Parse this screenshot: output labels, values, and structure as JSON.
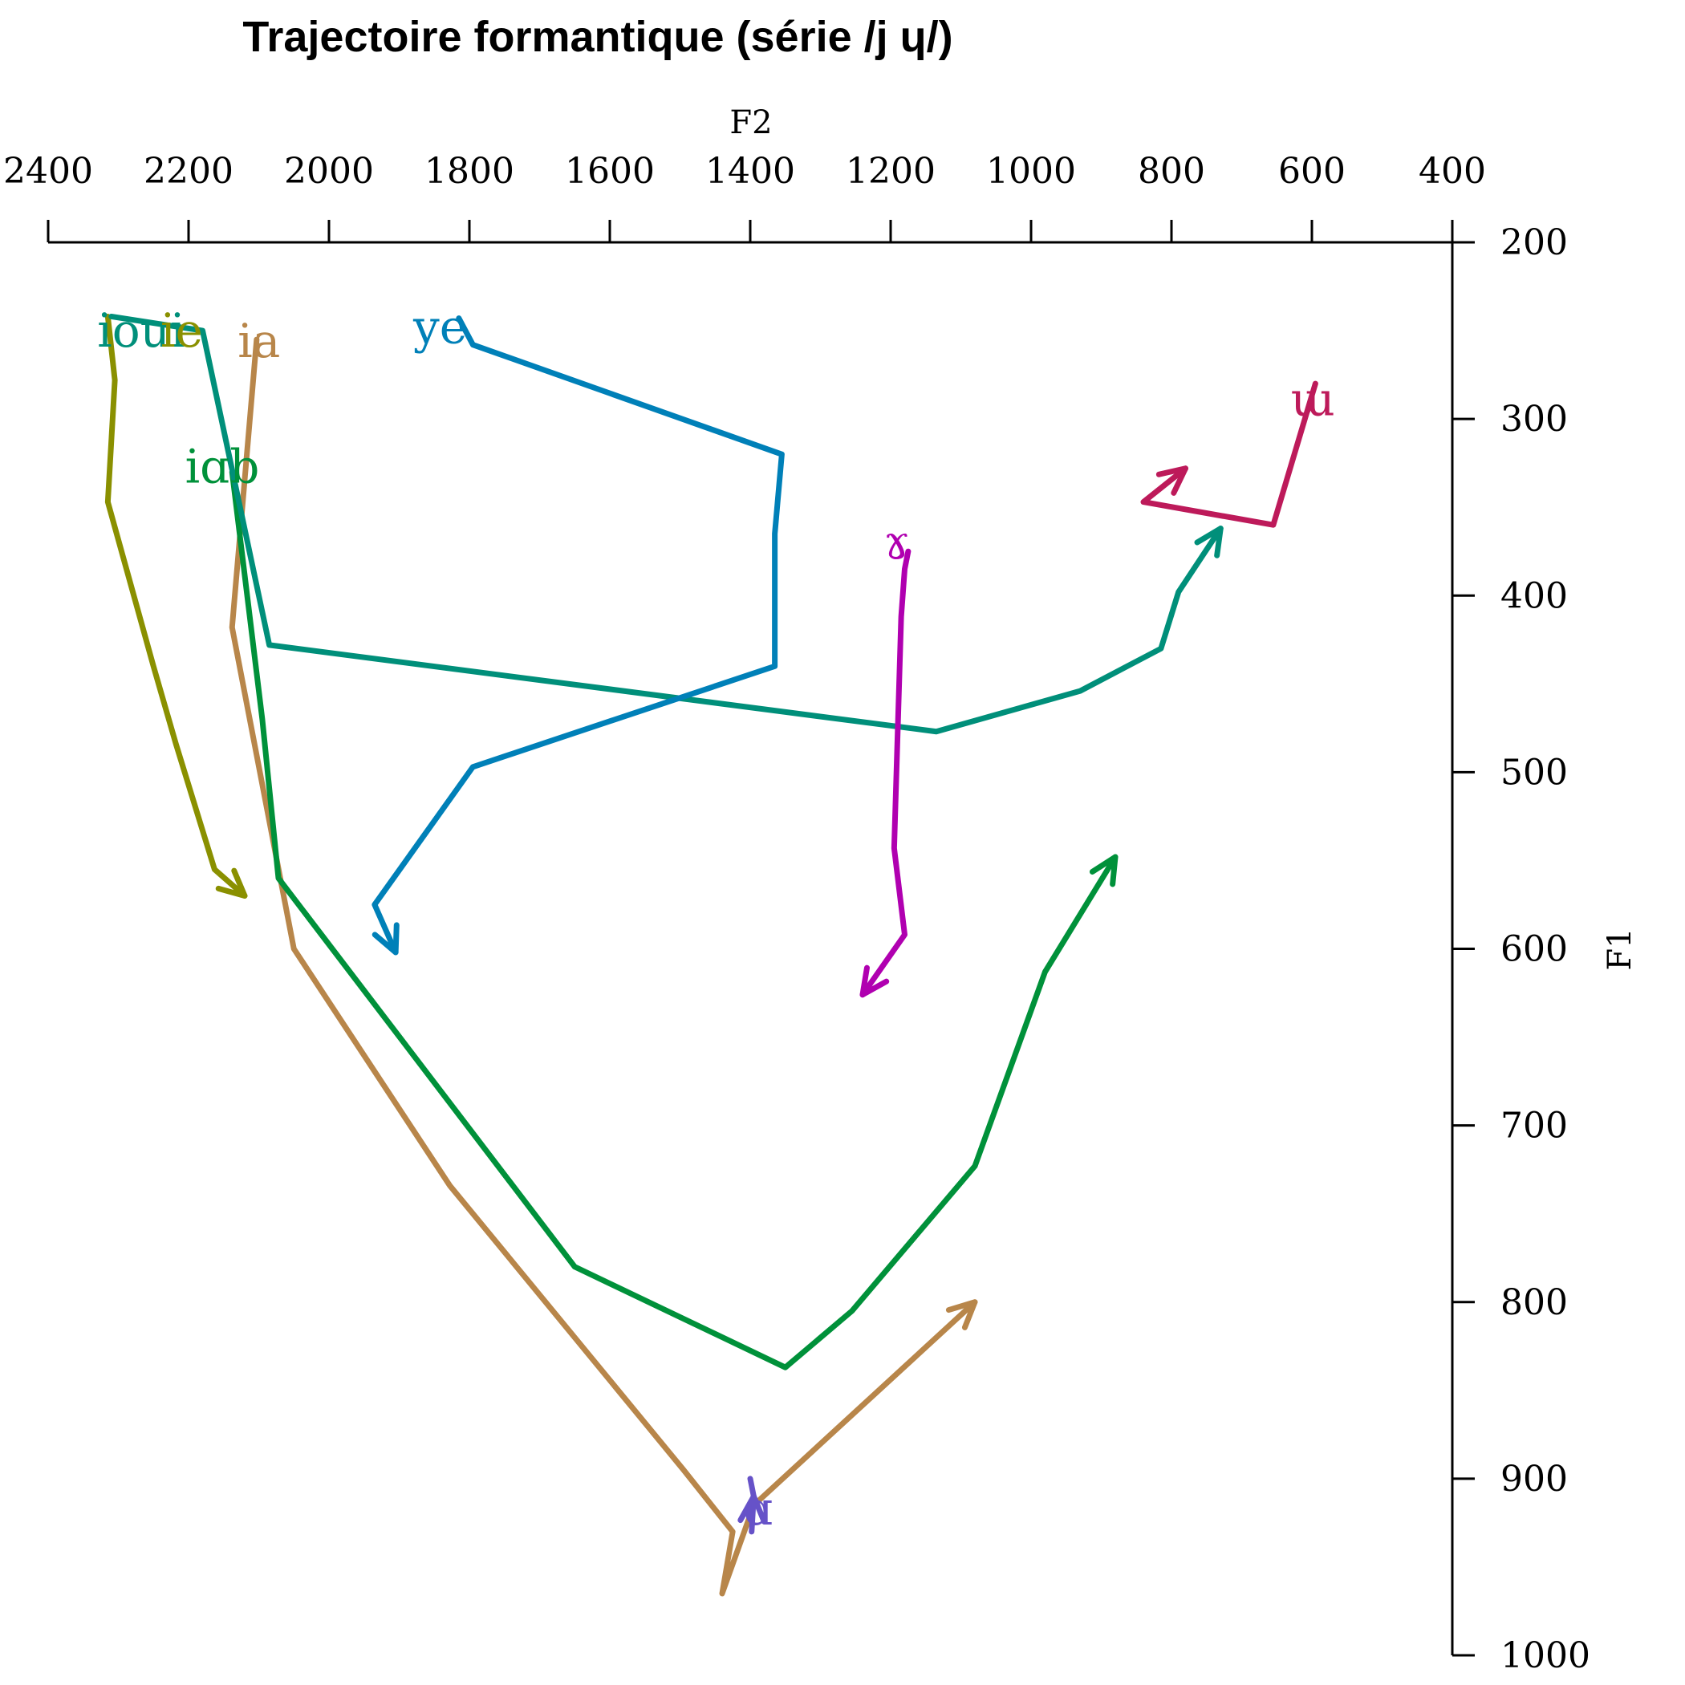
{
  "chart_data": {
    "type": "line",
    "title": "Trajectoire formantique (série /j ɥ/)",
    "xlabel": "F2",
    "ylabel": "F1",
    "xlim": [
      2400,
      400
    ],
    "ylim": [
      200,
      1000
    ],
    "x_axis_position": "top",
    "y_axis_position": "right",
    "x_reversed": true,
    "y_reversed": true,
    "grid": false,
    "xticks": [
      2400,
      2200,
      2000,
      1800,
      1600,
      1400,
      1200,
      1000,
      800,
      600,
      400
    ],
    "yticks": [
      200,
      300,
      400,
      500,
      600,
      700,
      800,
      900,
      1000
    ],
    "series": [
      {
        "name": "ie",
        "color": "#8a9000",
        "points": [
          [
            2315,
            242
          ],
          [
            2305,
            278
          ],
          [
            2315,
            347
          ],
          [
            2250,
            440
          ],
          [
            2218,
            484
          ],
          [
            2163,
            555
          ],
          [
            2120,
            570
          ]
        ]
      },
      {
        "name": "ia",
        "color": "#b8864a",
        "points": [
          [
            2103,
            255
          ],
          [
            2138,
            418
          ],
          [
            2050,
            600
          ],
          [
            1828,
            734
          ],
          [
            1495,
            895
          ],
          [
            1425,
            930
          ],
          [
            1440,
            965
          ],
          [
            1395,
            915
          ],
          [
            1080,
            800
          ]
        ]
      },
      {
        "name": "iɑb",
        "color": "#00913a",
        "points": [
          [
            2138,
            330
          ],
          [
            2095,
            470
          ],
          [
            2072,
            560
          ],
          [
            1650,
            780
          ],
          [
            1350,
            837
          ],
          [
            1255,
            805
          ],
          [
            1080,
            723
          ],
          [
            980,
            613
          ],
          [
            880,
            548
          ]
        ]
      },
      {
        "name": "ioui",
        "color": "#008f7a",
        "points": [
          [
            2310,
            242
          ],
          [
            2180,
            250
          ],
          [
            2085,
            428
          ],
          [
            1135,
            477
          ],
          [
            930,
            454
          ],
          [
            815,
            430
          ],
          [
            790,
            398
          ],
          [
            730,
            362
          ]
        ]
      },
      {
        "name": "ye",
        "color": "#0080b8",
        "points": [
          [
            1815,
            243
          ],
          [
            1795,
            258
          ],
          [
            1355,
            320
          ],
          [
            1365,
            365
          ],
          [
            1365,
            440
          ],
          [
            1795,
            497
          ],
          [
            1935,
            575
          ],
          [
            1905,
            602
          ]
        ]
      },
      {
        "name": "ɤ",
        "color": "#b000b0",
        "points": [
          [
            1175,
            375
          ],
          [
            1180,
            385
          ],
          [
            1185,
            412
          ],
          [
            1195,
            543
          ],
          [
            1180,
            592
          ],
          [
            1240,
            626
          ]
        ]
      },
      {
        "name": "ɯ",
        "color": "#bd1a5a",
        "points": [
          [
            595,
            280
          ],
          [
            655,
            360
          ],
          [
            840,
            347
          ],
          [
            780,
            328
          ]
        ]
      },
      {
        "name": "ɑ",
        "color": "#6652c8",
        "points": [
          [
            1400,
            900
          ],
          [
            1395,
            910
          ],
          [
            1398,
            930
          ],
          [
            1395,
            910
          ]
        ]
      }
    ],
    "annotations": [
      {
        "text": "ioui",
        "x": 2330,
        "y": 249,
        "color": "#008f7a"
      },
      {
        "text": "ie",
        "x": 2240,
        "y": 249,
        "color": "#8a9000"
      },
      {
        "text": "ia",
        "x": 2130,
        "y": 255,
        "color": "#b8864a"
      },
      {
        "text": "iɑb",
        "x": 2205,
        "y": 326,
        "color": "#00913a"
      },
      {
        "text": "ye",
        "x": 1880,
        "y": 247,
        "color": "#0080b8"
      },
      {
        "text": "ɤ",
        "x": 1210,
        "y": 369,
        "color": "#b000b0"
      },
      {
        "text": "ɯ",
        "x": 630,
        "y": 288,
        "color": "#bd1a5a"
      },
      {
        "text": "ɑ",
        "x": 1410,
        "y": 916,
        "color": "#6652c8"
      }
    ]
  }
}
